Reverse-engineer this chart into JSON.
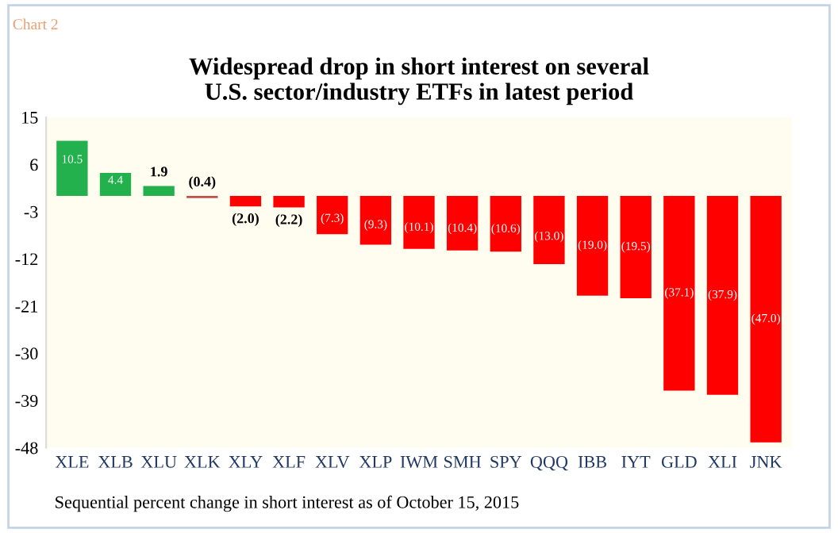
{
  "chart_data": {
    "type": "bar",
    "title": "Widespread drop in short interest on several\nU.S. sector/industry ETFs in latest period",
    "categories": [
      "XLE",
      "XLB",
      "XLU",
      "XLK",
      "XLY",
      "XLF",
      "XLV",
      "XLP",
      "IWM",
      "SMH",
      "SPY",
      "QQQ",
      "IBB",
      "IYT",
      "GLD",
      "XLI",
      "JNK"
    ],
    "values": [
      10.5,
      4.4,
      1.9,
      -0.4,
      -2.0,
      -2.2,
      -7.3,
      -9.3,
      -10.1,
      -10.4,
      -10.6,
      -13.0,
      -19.0,
      -19.5,
      -37.1,
      -37.9,
      -47.0
    ],
    "value_labels": [
      "10.5",
      "4.4",
      "1.9",
      "(0.4)",
      "(2.0)",
      "(2.2)",
      "(7.3)",
      "(9.3)",
      "(10.1)",
      "(10.4)",
      "(10.6)",
      "(13.0)",
      "(19.0)",
      "(19.5)",
      "(37.1)",
      "(37.9)",
      "(47.0)"
    ],
    "colors": [
      "#22b14c",
      "#22b14c",
      "#22b14c",
      "#c0504d",
      "#ff0000",
      "#ff0000",
      "#ff0000",
      "#ff0000",
      "#ff0000",
      "#ff0000",
      "#ff0000",
      "#ff0000",
      "#ff0000",
      "#ff0000",
      "#ff0000",
      "#ff0000",
      "#ff0000"
    ],
    "ylim": [
      -48,
      15
    ],
    "yticks": [
      15,
      6,
      -3,
      -12,
      -21,
      -30,
      -39,
      -48
    ],
    "grid": false,
    "annotations": [
      "Chart 2",
      "Sequential percent change in short interest as of October 15, 2015"
    ]
  }
}
